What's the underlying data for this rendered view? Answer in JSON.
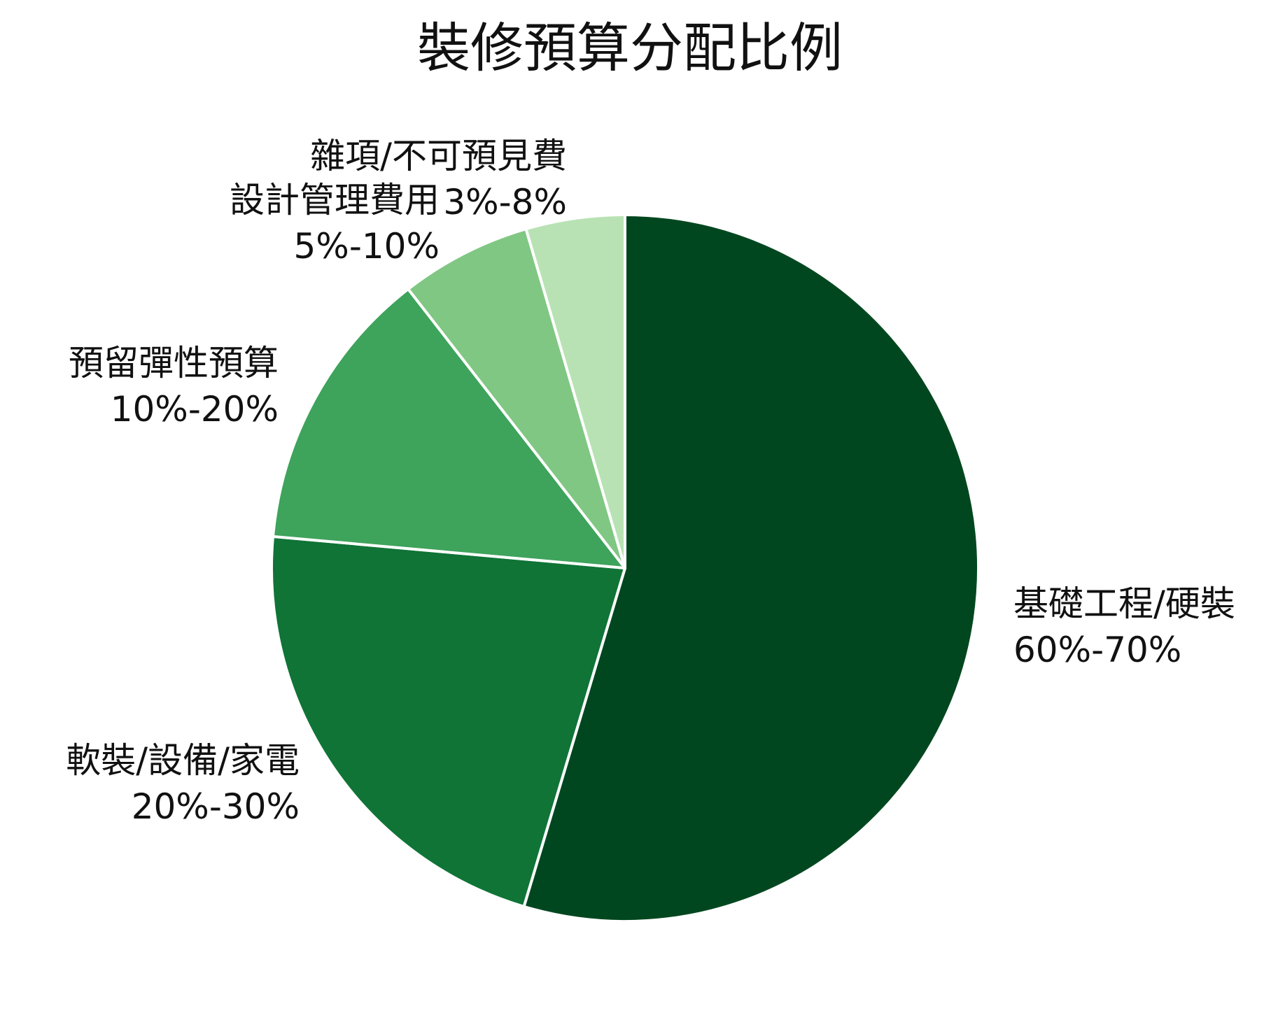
{
  "chart_data": {
    "type": "pie",
    "title": "裝修預算分配比例",
    "start_angle_deg": 90,
    "direction": "clockwise",
    "slices": [
      {
        "category": "基礎工程/硬裝",
        "range_label": "60%-70%",
        "value": 55.6,
        "color": "#00471f"
      },
      {
        "category": "軟裝/設備/家電",
        "range_label": "20%-30%",
        "value": 22.2,
        "color": "#0f7436"
      },
      {
        "category": "預留彈性預算",
        "range_label": "10%-20%",
        "value": 13.3,
        "color": "#3ea35b"
      },
      {
        "category": "設計管理費用",
        "range_label": "5%-10%",
        "value": 6.1,
        "color": "#80c783"
      },
      {
        "category": "雜項/不可預見費",
        "range_label": "3%-8%",
        "value": 4.6,
        "color": "#b8e2b3"
      }
    ],
    "legend": "none",
    "slice_border_color": "#ffffff"
  }
}
